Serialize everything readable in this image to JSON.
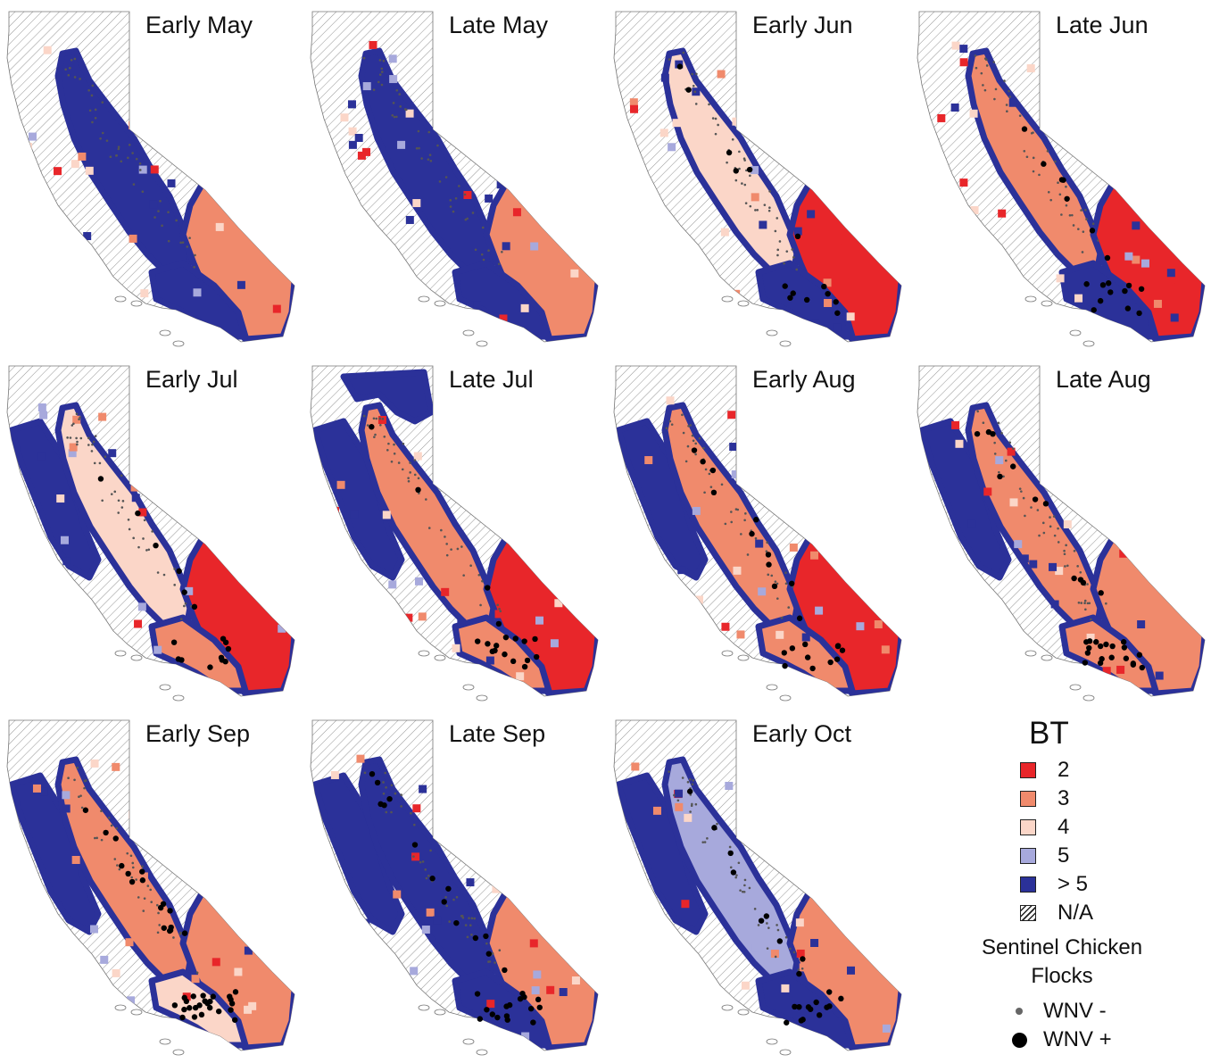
{
  "panels": [
    {
      "title": "Early May"
    },
    {
      "title": "Late May"
    },
    {
      "title": "Early Jun"
    },
    {
      "title": "Late Jun"
    },
    {
      "title": "Early Jul"
    },
    {
      "title": "Late Jul"
    },
    {
      "title": "Early Aug"
    },
    {
      "title": "Late Aug"
    },
    {
      "title": "Early Sep"
    },
    {
      "title": "Late Sep"
    },
    {
      "title": "Early Oct"
    }
  ],
  "legend": {
    "title": "BT",
    "items": [
      {
        "label": "2",
        "color": "#e8262a"
      },
      {
        "label": "3",
        "color": "#f08a6c"
      },
      {
        "label": "4",
        "color": "#fbd6c8"
      },
      {
        "label": "5",
        "color": "#a7a9dc"
      },
      {
        "label": "> 5",
        "color": "#2b3199"
      },
      {
        "label": "N/A",
        "color": "hatched"
      }
    ],
    "flocks_title": "Sentinel Chicken Flocks",
    "flocks": [
      {
        "label": "WNV -",
        "color": "#666666"
      },
      {
        "label": "WNV +",
        "color": "#000000"
      }
    ]
  }
}
